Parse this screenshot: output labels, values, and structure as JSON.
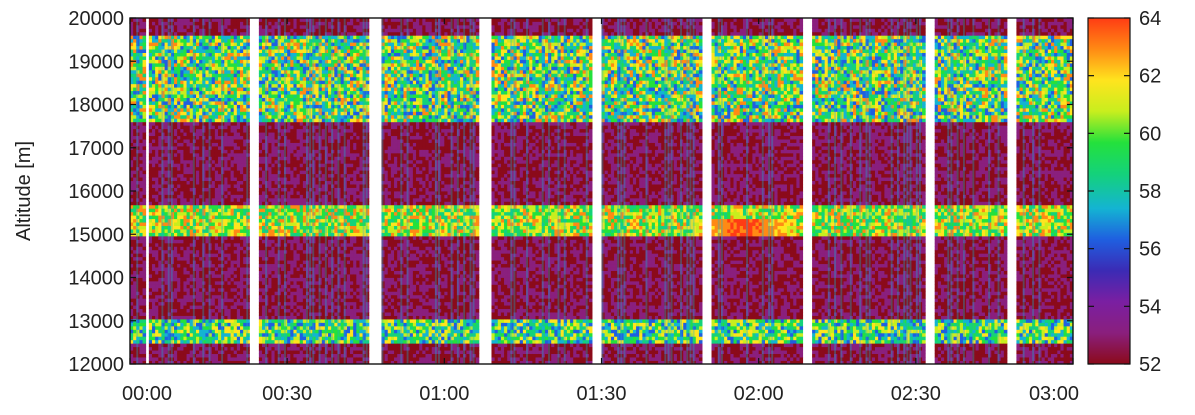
{
  "chart_data": {
    "type": "heatmap",
    "title": "",
    "xlabel": "",
    "ylabel": "Altitude [m]",
    "x_range": [
      "00:00",
      "03:00"
    ],
    "ylim": [
      12000,
      20000
    ],
    "x_ticks": [
      "00:00",
      "00:30",
      "01:00",
      "01:30",
      "02:00",
      "02:30",
      "03:00"
    ],
    "y_ticks": [
      "12000",
      "13000",
      "14000",
      "15000",
      "16000",
      "17000",
      "18000",
      "19000",
      "20000"
    ],
    "colorbar": {
      "range": [
        52,
        64
      ],
      "ticks": [
        "52",
        "54",
        "56",
        "58",
        "60",
        "62",
        "64"
      ],
      "palette": [
        "#8b0a1a",
        "#8a1f7d",
        "#7a1fa2",
        "#3b2bb5",
        "#1f5fe0",
        "#14b4d2",
        "#14d27a",
        "#24e13c",
        "#c8ee1e",
        "#ffe41e",
        "#ff8a14",
        "#ff3c14"
      ]
    },
    "data_gaps_minutes": [
      [
        2.5,
        3.5
      ],
      [
        22.5,
        24.5
      ],
      [
        45.5,
        47.5
      ],
      [
        66.5,
        68.5
      ],
      [
        88,
        90
      ],
      [
        109,
        111
      ],
      [
        128,
        130
      ],
      [
        151.5,
        153.5
      ],
      [
        167,
        169
      ]
    ],
    "layers": [
      {
        "altitude_range": [
          15000,
          15700
        ],
        "time_range": [
          "00:00",
          "03:00"
        ],
        "intensity_range": [
          58,
          63
        ],
        "peak": {
          "time": "01:57",
          "altitude": 15100,
          "value": 64
        }
      },
      {
        "altitude_range": [
          17600,
          19600
        ],
        "time_range": [
          "00:00",
          "03:00"
        ],
        "intensity_range": [
          56,
          63
        ]
      },
      {
        "altitude_range": [
          12500,
          13000
        ],
        "time_range": [
          "00:00",
          "03:00"
        ],
        "intensity_range": [
          56,
          62
        ]
      }
    ],
    "background_value": 53,
    "grid": false,
    "legend": "colorbar right"
  }
}
